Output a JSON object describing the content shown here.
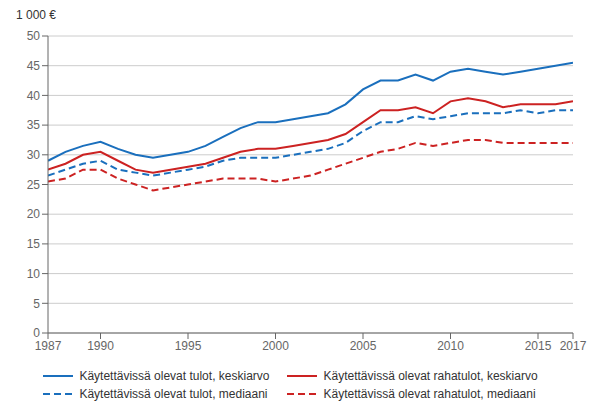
{
  "chart_data": {
    "type": "line",
    "ylabel": "1 000 €",
    "x": [
      1987,
      1988,
      1989,
      1990,
      1991,
      1992,
      1993,
      1994,
      1995,
      1996,
      1997,
      1998,
      1999,
      2000,
      2001,
      2002,
      2003,
      2004,
      2005,
      2006,
      2007,
      2008,
      2009,
      2010,
      2011,
      2012,
      2013,
      2014,
      2015,
      2016,
      2017
    ],
    "series": [
      {
        "name": "Käytettävissä olevat tulot, keskiarvo",
        "color": "#1a6fbd",
        "line_style": "solid",
        "values": [
          29.0,
          30.5,
          31.5,
          32.2,
          31.0,
          30.0,
          29.5,
          30.0,
          30.5,
          31.5,
          33.0,
          34.5,
          35.5,
          35.5,
          36.0,
          36.5,
          37.0,
          38.5,
          41.0,
          42.5,
          42.5,
          43.5,
          42.5,
          44.0,
          44.5,
          44.0,
          43.5,
          44.0,
          44.5,
          45.0,
          45.5
        ]
      },
      {
        "name": "Käytettävissä olevat rahatulot, keskiarvo",
        "color": "#cc2222",
        "line_style": "solid",
        "values": [
          27.5,
          28.5,
          30.0,
          30.5,
          29.0,
          27.5,
          27.0,
          27.5,
          28.0,
          28.5,
          29.5,
          30.5,
          31.0,
          31.0,
          31.5,
          32.0,
          32.5,
          33.5,
          35.5,
          37.5,
          37.5,
          38.0,
          37.0,
          39.0,
          39.5,
          39.0,
          38.0,
          38.5,
          38.5,
          38.5,
          39.0
        ]
      },
      {
        "name": "Käytettävissä olevat tulot, mediaani",
        "color": "#1a6fbd",
        "line_style": "dashed",
        "values": [
          26.5,
          27.5,
          28.5,
          29.0,
          27.5,
          27.0,
          26.5,
          27.0,
          27.5,
          28.0,
          29.0,
          29.5,
          29.5,
          29.5,
          30.0,
          30.5,
          31.0,
          32.0,
          34.0,
          35.5,
          35.5,
          36.5,
          36.0,
          36.5,
          37.0,
          37.0,
          37.0,
          37.5,
          37.0,
          37.5,
          37.5
        ]
      },
      {
        "name": "Käytettävissä olevat rahatulot, mediaani",
        "color": "#cc2222",
        "line_style": "dashed",
        "values": [
          25.5,
          26.0,
          27.5,
          27.5,
          26.0,
          25.0,
          24.0,
          24.5,
          25.0,
          25.5,
          26.0,
          26.0,
          26.0,
          25.5,
          26.0,
          26.5,
          27.5,
          28.5,
          29.5,
          30.5,
          31.0,
          32.0,
          31.5,
          32.0,
          32.5,
          32.5,
          32.0,
          32.0,
          32.0,
          32.0,
          32.0
        ]
      }
    ],
    "xlim": [
      1987,
      2017
    ],
    "xticks": [
      1987,
      1990,
      1995,
      2000,
      2005,
      2010,
      2015,
      2017
    ],
    "ylim": [
      0,
      50
    ],
    "yticks": [
      0,
      5,
      10,
      15,
      20,
      25,
      30,
      35,
      40,
      45,
      50
    ],
    "grid": "y",
    "legend": "bottom"
  }
}
